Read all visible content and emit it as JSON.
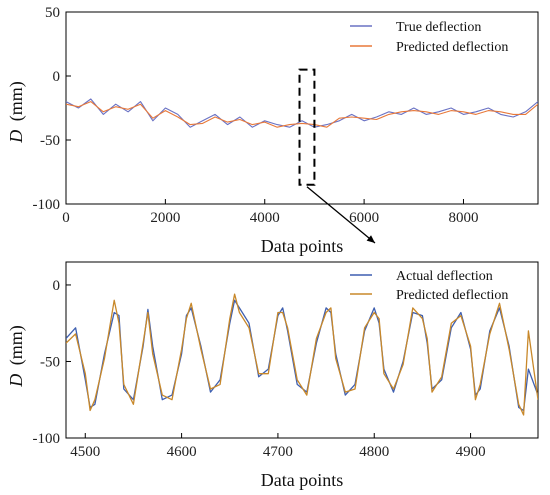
{
  "chart_data": [
    {
      "type": "line",
      "xlabel": "Data points",
      "ylabel_var": "D",
      "ylabel_unit": "(mm)",
      "xlim": [
        0,
        9500
      ],
      "ylim": [
        -100,
        50
      ],
      "xticks": [
        0,
        2000,
        4000,
        6000,
        8000
      ],
      "yticks": [
        -100,
        -50,
        0,
        50
      ],
      "grid": false,
      "legend_position": "top-right",
      "highlight_region": {
        "x": [
          4700,
          5000
        ],
        "y": [
          -85,
          5
        ]
      },
      "series": [
        {
          "name": "True deflection",
          "color": "#6a72c4",
          "x": [
            0,
            250,
            500,
            750,
            1000,
            1250,
            1500,
            1750,
            2000,
            2250,
            2500,
            2750,
            3000,
            3250,
            3500,
            3750,
            4000,
            4250,
            4500,
            4750,
            5000,
            5250,
            5500,
            5750,
            6000,
            6250,
            6500,
            6750,
            7000,
            7250,
            7500,
            7750,
            8000,
            8250,
            8500,
            8750,
            9000,
            9250,
            9500
          ],
          "y": [
            -20,
            -25,
            -18,
            -30,
            -22,
            -28,
            -20,
            -35,
            -25,
            -30,
            -40,
            -35,
            -30,
            -38,
            -32,
            -40,
            -35,
            -38,
            -40,
            -35,
            -40,
            -38,
            -35,
            -30,
            -35,
            -32,
            -28,
            -30,
            -25,
            -30,
            -28,
            -25,
            -30,
            -28,
            -25,
            -30,
            -32,
            -28,
            -20
          ]
        },
        {
          "name": "Predicted deflection",
          "color": "#e8793a",
          "x": [
            0,
            250,
            500,
            750,
            1000,
            1250,
            1500,
            1750,
            2000,
            2250,
            2500,
            2750,
            3000,
            3250,
            3500,
            3750,
            4000,
            4250,
            4500,
            4750,
            5000,
            5250,
            5500,
            5750,
            6000,
            6250,
            6500,
            6750,
            7000,
            7250,
            7500,
            7750,
            8000,
            8250,
            8500,
            8750,
            9000,
            9250,
            9500
          ],
          "y": [
            -22,
            -24,
            -20,
            -28,
            -24,
            -26,
            -22,
            -33,
            -27,
            -32,
            -38,
            -37,
            -32,
            -36,
            -34,
            -38,
            -36,
            -40,
            -38,
            -37,
            -38,
            -40,
            -33,
            -32,
            -33,
            -34,
            -30,
            -28,
            -27,
            -28,
            -30,
            -27,
            -28,
            -30,
            -27,
            -28,
            -30,
            -30,
            -22
          ]
        }
      ]
    },
    {
      "type": "line",
      "xlabel": "Data points",
      "ylabel_var": "D",
      "ylabel_unit": "(mm)",
      "xlim": [
        4480,
        4970
      ],
      "ylim": [
        -100,
        15
      ],
      "xticks": [
        4500,
        4600,
        4700,
        4800,
        4900
      ],
      "yticks": [
        -100,
        -50,
        0
      ],
      "grid": false,
      "legend_position": "top-right",
      "series": [
        {
          "name": "Actual deflection",
          "color": "#3e5fb0",
          "x": [
            4480,
            4490,
            4500,
            4505,
            4510,
            4520,
            4530,
            4535,
            4540,
            4550,
            4560,
            4565,
            4570,
            4580,
            4590,
            4600,
            4605,
            4610,
            4620,
            4630,
            4640,
            4650,
            4655,
            4660,
            4670,
            4680,
            4690,
            4700,
            4705,
            4710,
            4720,
            4730,
            4740,
            4750,
            4755,
            4760,
            4770,
            4780,
            4790,
            4800,
            4805,
            4810,
            4820,
            4830,
            4840,
            4850,
            4855,
            4860,
            4870,
            4880,
            4890,
            4900,
            4905,
            4910,
            4920,
            4930,
            4940,
            4950,
            4955,
            4960,
            4970
          ],
          "y": [
            -35,
            -28,
            -62,
            -80,
            -78,
            -45,
            -18,
            -20,
            -68,
            -75,
            -40,
            -16,
            -40,
            -75,
            -72,
            -45,
            -20,
            -15,
            -40,
            -70,
            -62,
            -25,
            -10,
            -15,
            -25,
            -60,
            -55,
            -20,
            -15,
            -30,
            -65,
            -70,
            -38,
            -15,
            -18,
            -45,
            -72,
            -65,
            -30,
            -15,
            -25,
            -55,
            -70,
            -50,
            -18,
            -20,
            -38,
            -68,
            -62,
            -28,
            -18,
            -42,
            -72,
            -68,
            -30,
            -15,
            -40,
            -80,
            -82,
            -55,
            -72
          ]
        },
        {
          "name": "Predicted deflection",
          "color": "#c8882a",
          "x": [
            4480,
            4490,
            4500,
            4505,
            4510,
            4520,
            4530,
            4535,
            4540,
            4550,
            4560,
            4565,
            4570,
            4580,
            4590,
            4600,
            4605,
            4610,
            4620,
            4630,
            4640,
            4650,
            4655,
            4660,
            4670,
            4680,
            4690,
            4700,
            4705,
            4710,
            4720,
            4730,
            4740,
            4750,
            4755,
            4760,
            4770,
            4780,
            4790,
            4800,
            4805,
            4810,
            4820,
            4830,
            4840,
            4850,
            4855,
            4860,
            4870,
            4880,
            4890,
            4900,
            4905,
            4910,
            4920,
            4930,
            4940,
            4950,
            4955,
            4960,
            4970
          ],
          "y": [
            -38,
            -32,
            -58,
            -82,
            -75,
            -48,
            -10,
            -25,
            -65,
            -78,
            -38,
            -18,
            -45,
            -72,
            -75,
            -42,
            -22,
            -12,
            -42,
            -68,
            -65,
            -22,
            -6,
            -18,
            -28,
            -58,
            -58,
            -18,
            -18,
            -28,
            -62,
            -72,
            -35,
            -18,
            -15,
            -48,
            -70,
            -68,
            -28,
            -18,
            -22,
            -58,
            -68,
            -52,
            -15,
            -22,
            -35,
            -70,
            -60,
            -25,
            -20,
            -40,
            -75,
            -65,
            -32,
            -12,
            -42,
            -78,
            -85,
            -30,
            -75
          ]
        }
      ]
    }
  ]
}
